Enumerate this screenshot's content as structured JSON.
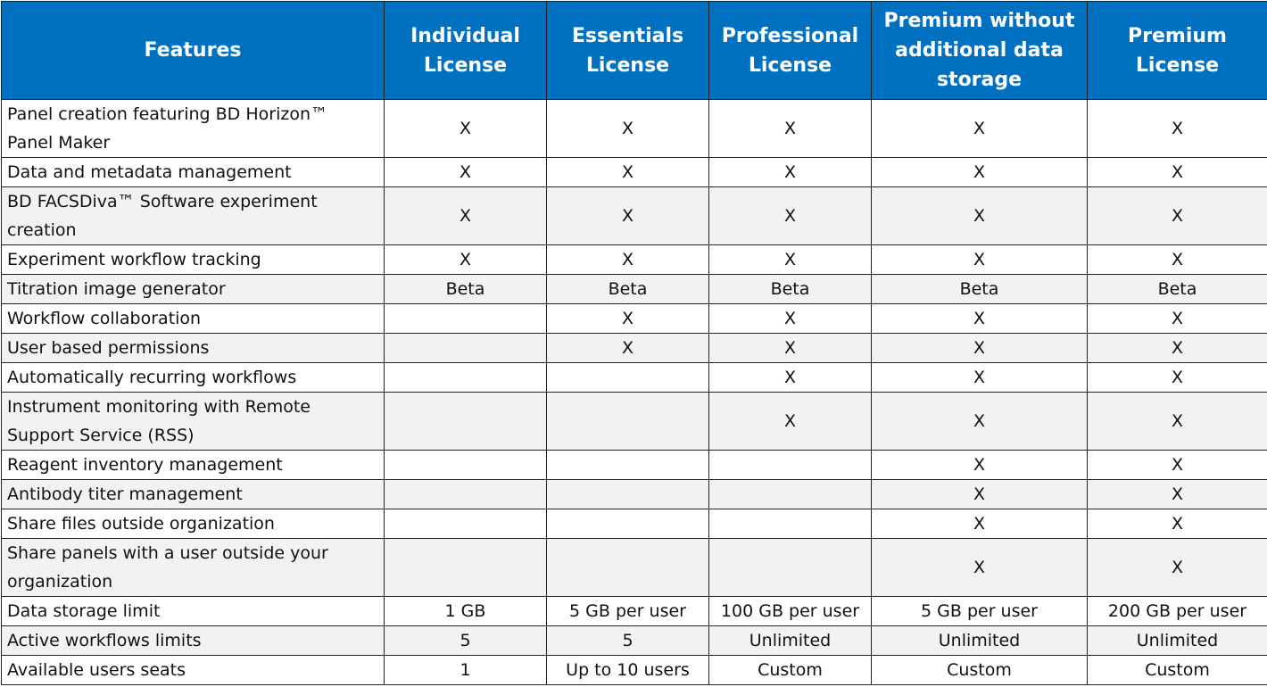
{
  "table": {
    "header": [
      "Features",
      "Individual License",
      "Essentials License",
      "Professional License",
      "Premium without additional data storage",
      "Premium License"
    ],
    "rows": [
      [
        "Panel creation featuring BD Horizon™ Panel Maker",
        "X",
        "X",
        "X",
        "X",
        "X"
      ],
      [
        "Data and metadata management",
        "X",
        "X",
        "X",
        "X",
        "X"
      ],
      [
        "BD FACSDiva™ Software experiment creation",
        "X",
        "X",
        "X",
        "X",
        "X"
      ],
      [
        "Experiment workflow tracking",
        "X",
        "X",
        "X",
        "X",
        "X"
      ],
      [
        "Titration image generator",
        "Beta",
        "Beta",
        "Beta",
        "Beta",
        "Beta"
      ],
      [
        "Workflow collaboration",
        null,
        "X",
        "X",
        "X",
        "X"
      ],
      [
        "User based permissions",
        null,
        "X",
        "X",
        "X",
        "X"
      ],
      [
        "Automatically recurring workflows",
        null,
        null,
        "X",
        "X",
        "X"
      ],
      [
        "Instrument  monitoring with Remote Support Service (RSS)",
        null,
        null,
        "X",
        "X",
        "X"
      ],
      [
        "Reagent inventory management",
        null,
        null,
        null,
        "X",
        "X"
      ],
      [
        "Antibody titer management",
        null,
        null,
        null,
        "X",
        "X"
      ],
      [
        "Share files outside organization",
        null,
        null,
        null,
        "X",
        "X"
      ],
      [
        "Share panels with a user outside your organization",
        null,
        null,
        null,
        "X",
        "X"
      ],
      [
        "Data storage limit",
        "1 GB",
        "5 GB per user",
        "100 GB per user",
        "5 GB per user",
        "200 GB per user"
      ],
      [
        "Active workflows limits",
        "5",
        "5",
        "Unlimited",
        "Unlimited",
        "Unlimited"
      ],
      [
        "Available users seats",
        "1",
        "Up to 10 users",
        "Custom",
        "Custom",
        "Custom"
      ]
    ]
  }
}
